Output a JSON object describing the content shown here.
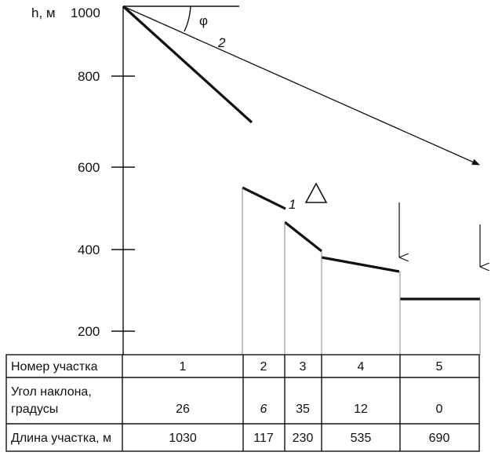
{
  "diagram": {
    "y_axis_label": "h, м",
    "y_ticks": [
      "1000",
      "800",
      "600",
      "400",
      "200"
    ],
    "angle_symbol": "φ",
    "curve_labels": [
      "1",
      "2"
    ],
    "triangle_symbol": "Δ"
  },
  "table": {
    "rows": [
      {
        "header_lines": [
          "Номер участка"
        ],
        "values": [
          "1",
          "2",
          "3",
          "4",
          "5"
        ]
      },
      {
        "header_lines": [
          "Угол наклона,",
          "градусы"
        ],
        "values": [
          "26",
          "6",
          "35",
          "12",
          "0"
        ]
      },
      {
        "header_lines": [
          "Длина участка, м"
        ],
        "values": [
          "1030",
          "117",
          "230",
          "535",
          "690"
        ]
      }
    ]
  },
  "segments": [
    {
      "number": "1",
      "angle_deg": 26,
      "length_m": 1030,
      "start_h_m": 1000,
      "end_h_m": 700
    },
    {
      "number": "2",
      "angle_deg": 6,
      "length_m": 117,
      "start_h_m": 550,
      "end_h_m": 490
    },
    {
      "number": "3",
      "angle_deg": 35,
      "length_m": 230,
      "start_h_m": 465,
      "end_h_m": 400
    },
    {
      "number": "4",
      "angle_deg": 12,
      "length_m": 535,
      "start_h_m": 380,
      "end_h_m": 345
    },
    {
      "number": "5",
      "angle_deg": 0,
      "length_m": 690,
      "start_h_m": 280,
      "end_h_m": 280
    }
  ]
}
